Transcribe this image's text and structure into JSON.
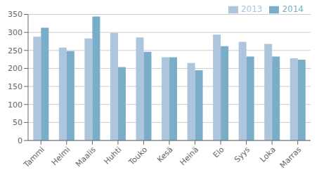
{
  "chart_data": {
    "type": "bar",
    "categories": [
      "Tammi",
      "Helmi",
      "Maalis",
      "Huhti",
      "Touko",
      "Kesä",
      "Heinä",
      "Elo",
      "Syys",
      "Loka",
      "Marras"
    ],
    "series": [
      {
        "name": "2013",
        "color": "#adc6dd",
        "values": [
          288,
          258,
          283,
          299,
          286,
          231,
          215,
          294,
          274,
          268,
          228
        ]
      },
      {
        "name": "2014",
        "color": "#7aaec8",
        "values": [
          313,
          248,
          344,
          204,
          246,
          231,
          195,
          262,
          233,
          233,
          224
        ]
      }
    ],
    "ylim": [
      0,
      350
    ],
    "yticks": [
      0,
      50,
      100,
      150,
      200,
      250,
      300,
      350
    ],
    "grid": true,
    "legend": "upper right"
  }
}
